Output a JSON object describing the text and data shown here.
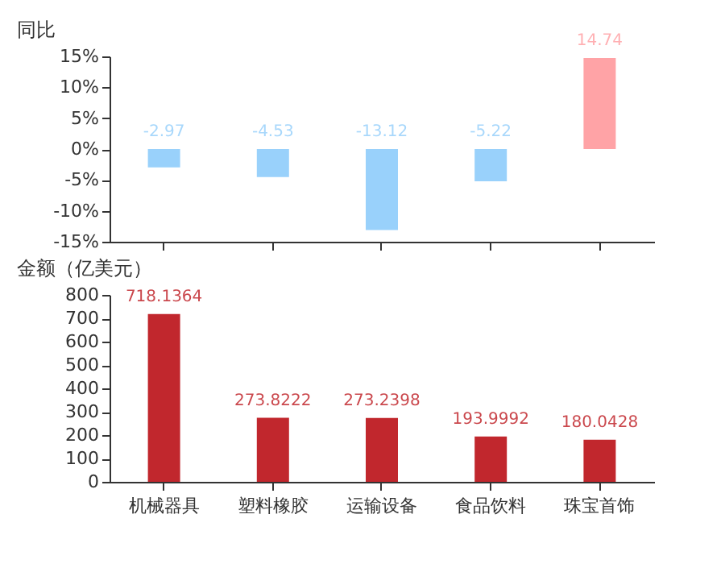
{
  "chart_data": [
    {
      "type": "bar",
      "ylabel": "同比",
      "categories": [
        null,
        null,
        null,
        null,
        null
      ],
      "values": [
        -2.97,
        -4.53,
        -13.12,
        -5.22,
        14.74
      ],
      "colors": [
        "#99d1fb",
        "#99d1fb",
        "#99d1fb",
        "#99d1fb",
        "#ffa3a6"
      ],
      "ylim": [
        -15,
        15
      ],
      "yticks": [
        {
          "value": -15,
          "label": "-15%"
        },
        {
          "value": -10,
          "label": "-10%"
        },
        {
          "value": -5,
          "label": "-5%"
        },
        {
          "value": 0,
          "label": "0%"
        },
        {
          "value": 5,
          "label": "5%"
        },
        {
          "value": 10,
          "label": "10%"
        },
        {
          "value": 15,
          "label": "15%"
        }
      ],
      "data_labels": true
    },
    {
      "type": "bar",
      "ylabel": "金额（亿美元）",
      "categories": [
        "机械器具",
        "塑料橡胶",
        "运输设备",
        "食品饮料",
        "珠宝首饰"
      ],
      "values": [
        718.1364,
        273.8222,
        273.2398,
        193.9992,
        180.0428
      ],
      "color": "#c1272d",
      "ylim": [
        0,
        800
      ],
      "yticks": [
        0,
        100,
        200,
        300,
        400,
        500,
        600,
        700,
        800
      ],
      "data_labels": true
    }
  ]
}
